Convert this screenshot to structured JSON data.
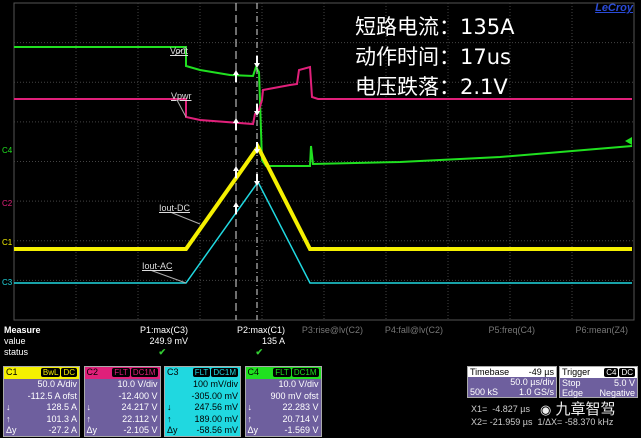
{
  "overlay": {
    "line1": "短路电流：135A",
    "line2": "动作时间：17us",
    "line3": "电压跌落：2.1V"
  },
  "logo": "LeCroy",
  "waveform_labels": {
    "vout": "Vout",
    "vpwr": "Vpwr",
    "iout_dc": "Iout-DC",
    "iout_ac": "Iout-AC"
  },
  "channel_markers": {
    "c4": "C4",
    "c2": "C2",
    "c1": "C1",
    "c3": "C3"
  },
  "colors": {
    "c1": "#f5f000",
    "c2": "#e0207a",
    "c3": "#20d8e0",
    "c4": "#20e020",
    "panel": "#6e5f9e"
  },
  "measure": {
    "title": "Measure",
    "row_value": "value",
    "row_status": "status",
    "params": [
      {
        "name": "P1:max(C3)",
        "value": "249.9 mV",
        "status": "✔"
      },
      {
        "name": "P2:max(C1)",
        "value": "135 A",
        "status": "✔"
      },
      {
        "name": "P3:rise@lv(C2)",
        "value": "",
        "status": ""
      },
      {
        "name": "P4:fall@lv(C2)",
        "value": "",
        "status": ""
      },
      {
        "name": "P5:freq(C4)",
        "value": "",
        "status": ""
      },
      {
        "name": "P6:mean(Z4)",
        "value": "",
        "status": ""
      }
    ]
  },
  "channels": [
    {
      "id": "C1",
      "tags": [
        "BwL",
        "DC"
      ],
      "scale": "50.0 A/div",
      "offset": "-112.5 A ofst",
      "down": "128.5 A",
      "up": "101.3 A",
      "dy": "-27.2 A"
    },
    {
      "id": "C2",
      "tags": [
        "FLT",
        "DC1M"
      ],
      "scale": "10.0 V/div",
      "offset": "-12.400 V",
      "down": "24.217 V",
      "up": "22.112 V",
      "dy": "-2.105 V"
    },
    {
      "id": "C3",
      "tags": [
        "FLT",
        "DC1M"
      ],
      "scale": "100 mV/div",
      "offset": "-305.00 mV",
      "down": "247.56 mV",
      "up": "189.00 mV",
      "dy": "-58.56 mV"
    },
    {
      "id": "C4",
      "tags": [
        "FLT",
        "DC1M"
      ],
      "scale": "10.0 V/div",
      "offset": "900 mV ofst",
      "down": "22.283 V",
      "up": "20.714 V",
      "dy": "-1.569 V"
    }
  ],
  "timebase": {
    "label": "Timebase",
    "delay": "-49 µs",
    "scale": "50.0 µs/div",
    "samples": "500 kS",
    "rate": "1.0 GS/s"
  },
  "trigger": {
    "label": "Trigger",
    "tags": [
      "C4",
      "DC"
    ],
    "mode": "Stop",
    "level": "5.0 V",
    "type": "Edge",
    "slope": "Negative"
  },
  "cursors": {
    "x1_label": "X1=",
    "x1": "-4.827 µs",
    "x2_label": "X2=",
    "x2": "-21.959 µs",
    "inv_label": "1/ΔX=",
    "inv": "-58.370 kHz"
  },
  "watermark": "九章智驾"
}
